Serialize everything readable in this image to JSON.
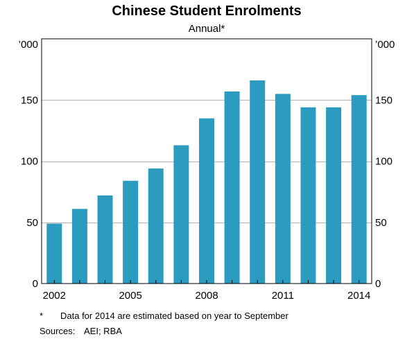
{
  "chart_data": {
    "type": "bar",
    "title": "Chinese Student Enrolments",
    "subtitle": "Annual*",
    "y_unit_left": "’000",
    "y_unit_right": "’000",
    "categories": [
      "2002",
      "2003",
      "2004",
      "2005",
      "2006",
      "2007",
      "2008",
      "2009",
      "2010",
      "2011",
      "2012",
      "2013",
      "2014"
    ],
    "values": [
      49,
      61,
      72,
      84,
      94,
      113,
      135,
      157,
      166,
      155,
      144,
      144,
      154
    ],
    "ylim": [
      0,
      200
    ],
    "yticks": [
      0,
      50,
      100,
      150
    ],
    "yticklabels": [
      "0",
      "50",
      "100",
      "150"
    ],
    "xticklabels": [
      "2002",
      "2005",
      "2008",
      "2011",
      "2014"
    ],
    "grid": true,
    "bar_color": "#2b9bbf"
  },
  "footnote": {
    "marker": "*",
    "text": "Data for 2014 are estimated based on year to September"
  },
  "sources": {
    "label": "Sources:",
    "text": "AEI; RBA"
  }
}
